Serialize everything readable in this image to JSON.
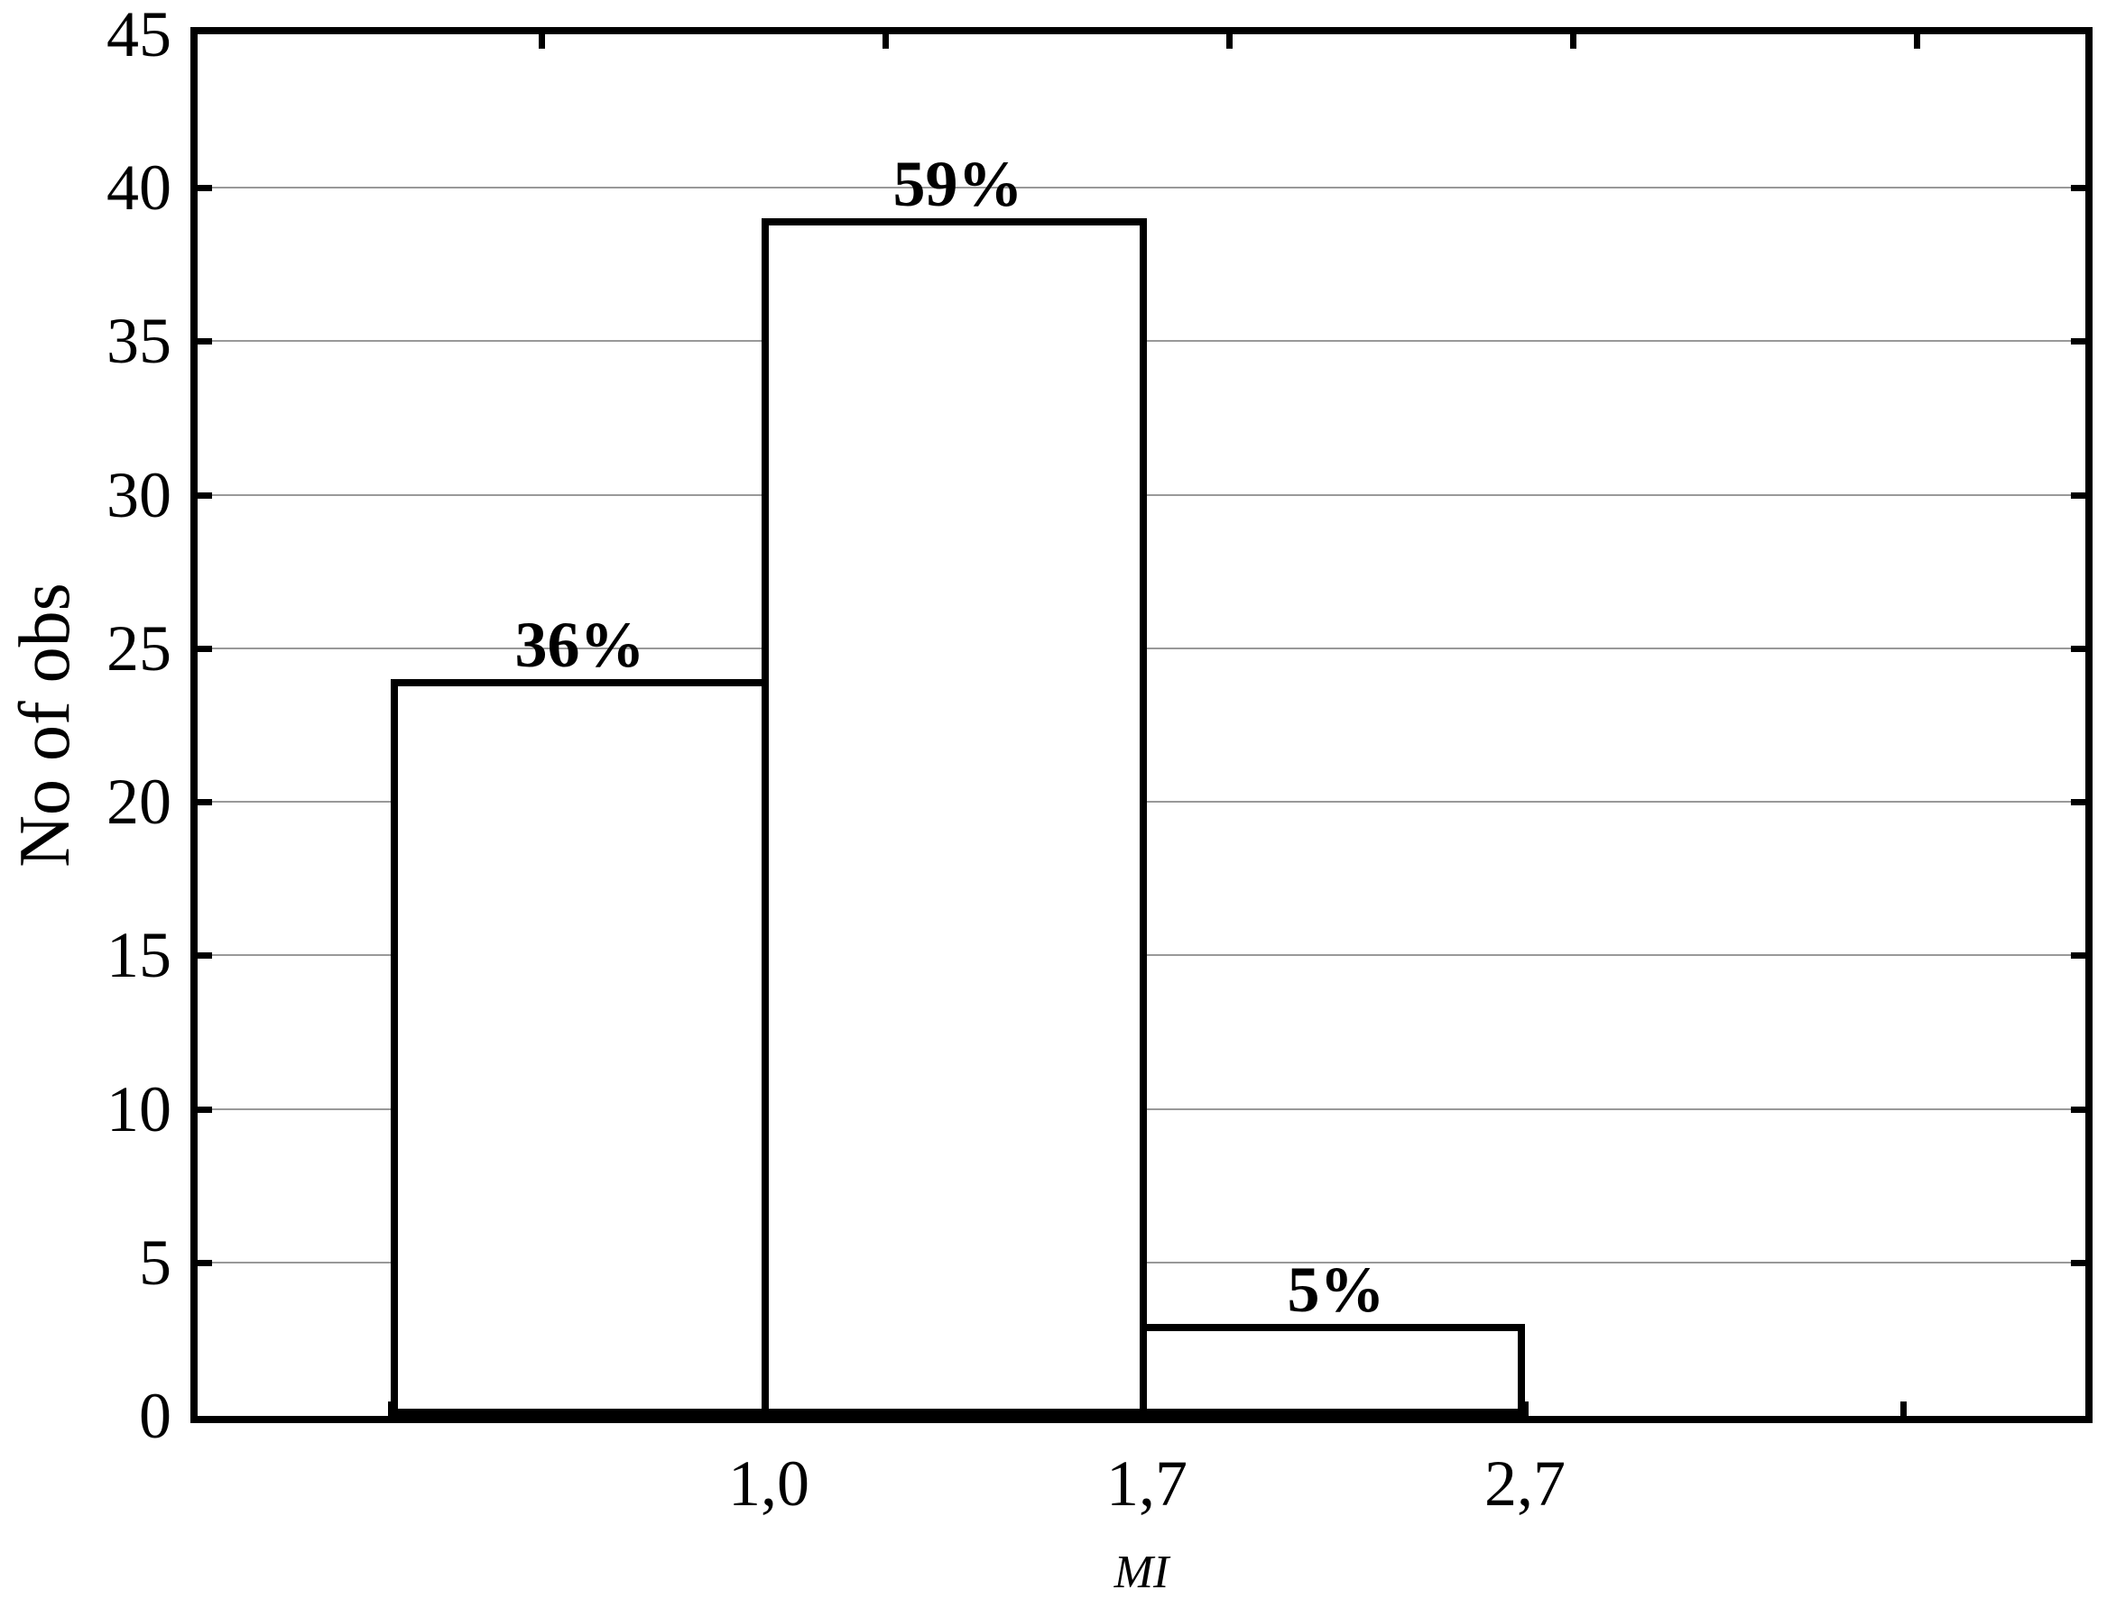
{
  "chart_data": {
    "type": "bar",
    "subtype": "histogram",
    "title": "",
    "categories": [
      "1,0",
      "1,7",
      "2,7"
    ],
    "values": [
      24,
      39,
      3
    ],
    "bar_labels": [
      "36%",
      "59%",
      "5%"
    ],
    "xlabel": "MI",
    "ylabel": "No of obs",
    "ylim": [
      0,
      45
    ],
    "yticks": [
      0,
      5,
      10,
      15,
      20,
      25,
      30,
      35,
      40,
      45
    ],
    "ytick_labels": [
      "0",
      "5",
      "10",
      "15",
      "20",
      "25",
      "30",
      "35",
      "40",
      "45"
    ],
    "x_tick_labels": [
      "1,0",
      "1,7",
      "2,7"
    ],
    "grid": "horizontal",
    "legend_position": "none",
    "bar_fill_color": "#ffffff",
    "bar_border_color": "#000000",
    "frame_color": "#000000",
    "gridline_color": "#999999",
    "text_color": "#000000"
  }
}
